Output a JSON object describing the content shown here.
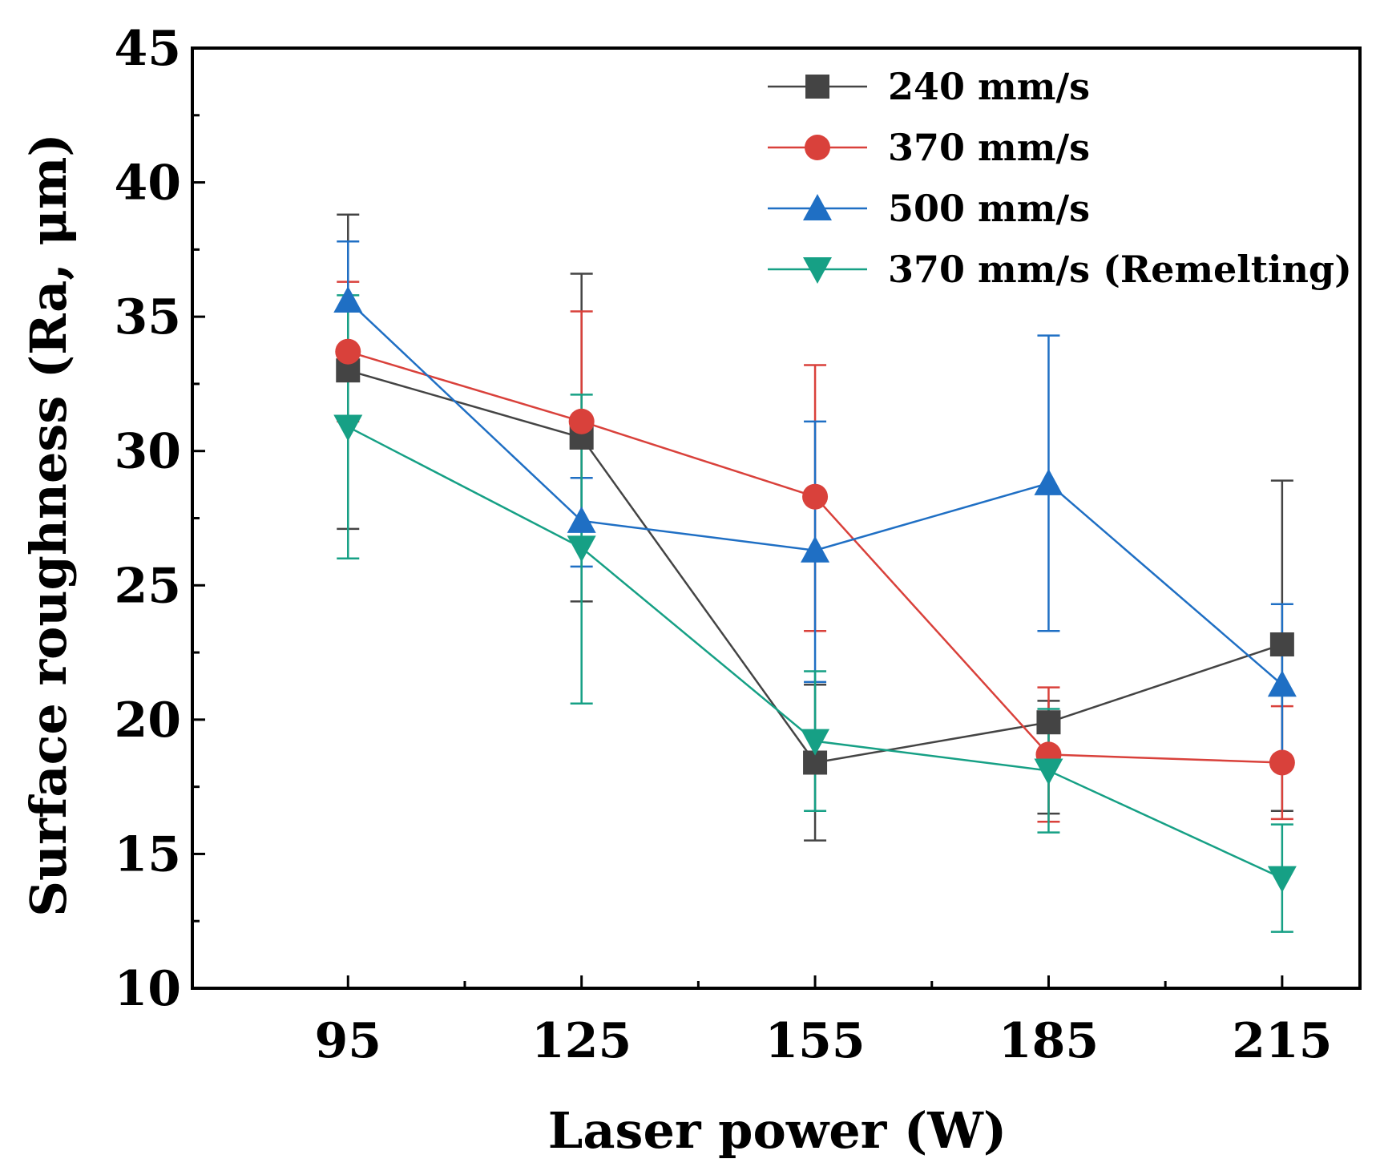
{
  "chart_data": {
    "type": "line",
    "title": "",
    "xlabel": "Laser power (W)",
    "ylabel": "Surface roughness (Ra, μm)",
    "x": [
      95,
      125,
      155,
      185,
      215
    ],
    "x_tick_labels": [
      "95",
      "125",
      "155",
      "185",
      "215"
    ],
    "xlim": [
      75,
      225
    ],
    "ylim": [
      10,
      45
    ],
    "y_ticks": [
      10,
      15,
      20,
      25,
      30,
      35,
      40,
      45
    ],
    "y_tick_labels": [
      "10",
      "15",
      "20",
      "25",
      "30",
      "35",
      "40",
      "45"
    ],
    "grid": false,
    "legend_position": "top-right",
    "series": [
      {
        "name": "240 mm/s",
        "color": "#444444",
        "marker": "square",
        "values": [
          33.0,
          30.5,
          18.4,
          19.9,
          22.8
        ],
        "error_low": [
          27.1,
          24.4,
          15.5,
          16.5,
          16.6
        ],
        "error_high": [
          38.8,
          36.6,
          21.3,
          20.7,
          28.9
        ]
      },
      {
        "name": "370 mm/s",
        "color": "#d9413b",
        "marker": "circle",
        "values": [
          33.7,
          31.1,
          28.3,
          18.7,
          18.4
        ],
        "error_low": [
          31.1,
          27.1,
          23.3,
          16.2,
          16.3
        ],
        "error_high": [
          36.3,
          35.2,
          33.2,
          21.2,
          20.5
        ]
      },
      {
        "name": "500 mm/s",
        "color": "#1f6fc4",
        "marker": "triangle-up",
        "values": [
          35.6,
          27.4,
          26.3,
          28.8,
          21.3
        ],
        "error_low": [
          33.4,
          25.7,
          21.4,
          23.3,
          18.3
        ],
        "error_high": [
          37.8,
          29.0,
          31.1,
          34.3,
          24.3
        ]
      },
      {
        "name": "370 mm/s (Remelting)",
        "color": "#16a085",
        "marker": "triangle-down",
        "values": [
          30.9,
          26.4,
          19.2,
          18.1,
          14.1
        ],
        "error_low": [
          26.0,
          20.6,
          16.6,
          15.8,
          12.1
        ],
        "error_high": [
          35.8,
          32.1,
          21.8,
          20.4,
          16.1
        ]
      }
    ]
  }
}
